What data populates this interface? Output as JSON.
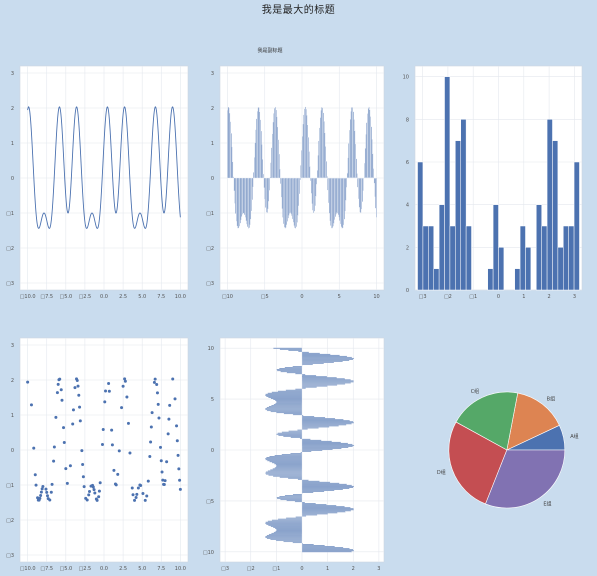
{
  "title": "我是最大的标题",
  "subtitle": "我是副标题",
  "colors": {
    "background": "#c9dcee",
    "line": "#4c72b0",
    "pie": [
      "#4c72b0",
      "#dd8452",
      "#55a868",
      "#c44e52",
      "#8172b2"
    ]
  },
  "chart_data": [
    {
      "type": "line",
      "panel": "top-left",
      "function": "sin(x)+cos(2x)+sin(3x)",
      "xlim": [
        -11,
        11
      ],
      "ylim": [
        -3.2,
        3.2
      ],
      "xticks": [
        "□10.0",
        "□7.5",
        "□5.0",
        "□2.5",
        "0.0",
        "2.5",
        "5.0",
        "7.5",
        "10.0"
      ],
      "xtick_values": [
        -10,
        -7.5,
        -5,
        -2.5,
        0,
        2.5,
        5,
        7.5,
        10
      ],
      "yticks": [
        "□3",
        "□2",
        "□1",
        "0",
        "1",
        "2",
        "3"
      ],
      "ytick_values": [
        -3,
        -2,
        -1,
        0,
        1,
        2,
        3
      ],
      "grid": true
    },
    {
      "type": "bar",
      "panel": "top-middle",
      "function": "sin(x)+cos(2x)+sin(3x)",
      "xlim": [
        -11,
        11
      ],
      "ylim": [
        -3.2,
        3.2
      ],
      "xticks": [
        "□10",
        "□5",
        "0",
        "5",
        "10"
      ],
      "xtick_values": [
        -10,
        -5,
        0,
        5,
        10
      ],
      "yticks": [
        "□3",
        "□2",
        "□1",
        "0",
        "1",
        "2",
        "3"
      ],
      "ytick_values": [
        -3,
        -2,
        -1,
        0,
        1,
        2,
        3
      ],
      "grid": true
    },
    {
      "type": "histogram",
      "panel": "top-right",
      "bin_edges_range": [
        -3.2,
        3.2
      ],
      "values": [
        6,
        3,
        3,
        1,
        4,
        10,
        3,
        7,
        8,
        3,
        0,
        0,
        0,
        1,
        4,
        2,
        0,
        0,
        1,
        3,
        2,
        0,
        4,
        3,
        8,
        7,
        2,
        3,
        3,
        6
      ],
      "xlim": [
        -3.3,
        3.3
      ],
      "ylim": [
        0,
        10.5
      ],
      "xticks": [
        "□3",
        "□2",
        "□1",
        "0",
        "1",
        "2",
        "3"
      ],
      "xtick_values": [
        -3,
        -2,
        -1,
        0,
        1,
        2,
        3
      ],
      "yticks": [
        "0",
        "2",
        "4",
        "6",
        "8",
        "10"
      ],
      "ytick_values": [
        0,
        2,
        4,
        6,
        8,
        10
      ],
      "grid": true
    },
    {
      "type": "scatter",
      "panel": "bottom-left",
      "function": "sin(x)+cos(2x)+sin(3x)",
      "x": [
        -10.0,
        -9.5,
        -9.2,
        -9.0,
        -8.9,
        -8.7,
        -8.6,
        -8.5,
        -8.4,
        -8.3,
        -8.2,
        -8.1,
        -8.0,
        -7.6,
        -7.5,
        -7.4,
        -7.3,
        -7.1,
        -6.9,
        -6.8,
        -6.6,
        -6.5,
        -6.3,
        -6.1,
        -6.0,
        -5.9,
        -5.8,
        -5.6,
        -5.5,
        -5.3,
        -5.2,
        -5.0,
        -4.8,
        -4.4,
        -4.1,
        -4.0,
        -3.8,
        -3.6,
        -3.5,
        -3.4,
        -3.3,
        -3.2,
        -3.1,
        -2.9,
        -2.8,
        -2.7,
        -2.6,
        -2.4,
        -2.2,
        -2.0,
        -1.9,
        -1.7,
        -1.5,
        -1.4,
        -1.3,
        -1.2,
        -1.0,
        -0.9,
        -0.7,
        -0.6,
        -0.5,
        -0.2,
        -0.1,
        0.1,
        0.2,
        0.6,
        0.7,
        1.0,
        1.1,
        1.3,
        1.5,
        1.6,
        1.8,
        2.0,
        2.3,
        2.5,
        2.7,
        2.8,
        3.0,
        3.2,
        3.4,
        3.7,
        3.8,
        4.0,
        4.2,
        4.3,
        4.5,
        4.7,
        4.8,
        5.1,
        5.4,
        5.6,
        5.8,
        6.0,
        6.1,
        6.2,
        6.3,
        6.6,
        6.7,
        6.9,
        7.0,
        7.1,
        7.2,
        7.4,
        7.5,
        7.6,
        7.7,
        7.8,
        7.9,
        8.0,
        8.2,
        8.4,
        8.5,
        8.6,
        9.0,
        9.3,
        9.5,
        9.6,
        9.7,
        9.8,
        9.9,
        10.0
      ],
      "xlim": [
        -11,
        11
      ],
      "ylim": [
        -3.2,
        3.2
      ],
      "xticks": [
        "□10.0",
        "□7.5",
        "□5.0",
        "□2.5",
        "0.0",
        "2.5",
        "5.0",
        "7.5",
        "10.0"
      ],
      "xtick_values": [
        -10,
        -7.5,
        -5,
        -2.5,
        0,
        2.5,
        5,
        7.5,
        10
      ],
      "yticks": [
        "□3",
        "□2",
        "□1",
        "0",
        "1",
        "2",
        "3"
      ],
      "ytick_values": [
        -3,
        -2,
        -1,
        0,
        1,
        2,
        3
      ],
      "grid": true
    },
    {
      "type": "barh",
      "panel": "bottom-middle",
      "function": "sin(y)+cos(2y)+sin(3y)",
      "xlim": [
        -3.2,
        3.2
      ],
      "ylim": [
        -11,
        11
      ],
      "xticks": [
        "□3",
        "□2",
        "□1",
        "0",
        "1",
        "2",
        "3"
      ],
      "xtick_values": [
        -3,
        -2,
        -1,
        0,
        1,
        2,
        3
      ],
      "yticks": [
        "□10",
        "□5",
        "0",
        "5",
        "10"
      ],
      "ytick_values": [
        -10,
        -5,
        0,
        5,
        10
      ],
      "grid": true
    },
    {
      "type": "pie",
      "panel": "bottom-right",
      "labels": [
        "A组",
        "B组",
        "C组",
        "D组",
        "E组"
      ],
      "values": [
        7,
        15,
        20,
        27,
        31
      ],
      "startangle": 0
    }
  ]
}
